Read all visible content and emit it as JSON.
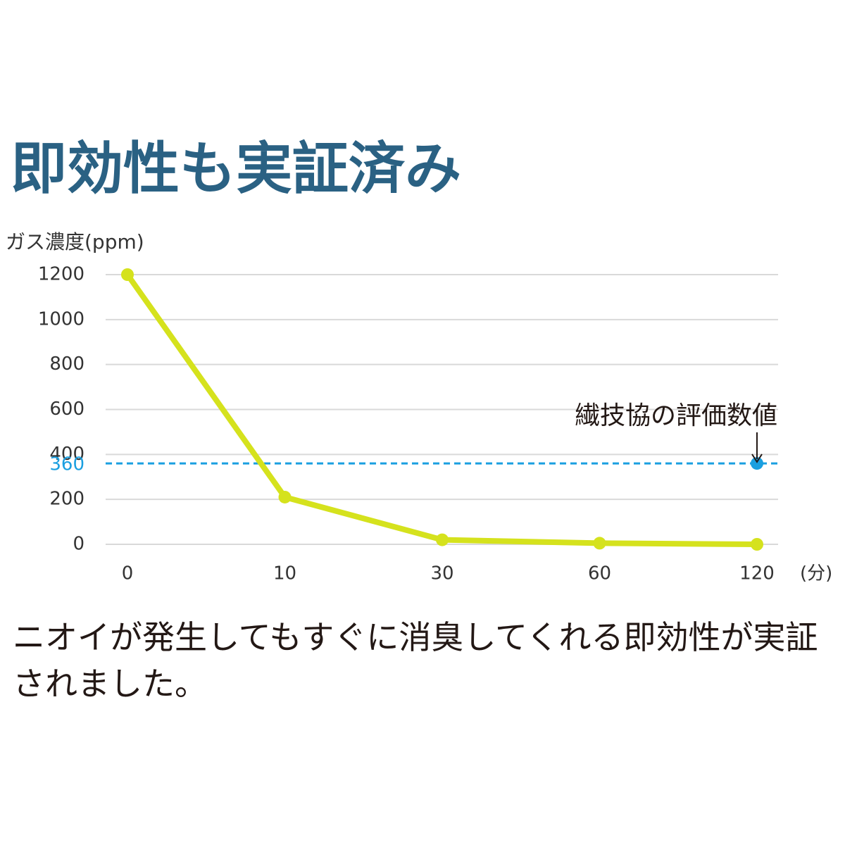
{
  "chart_data": {
    "type": "line",
    "title": "即効性も実証済み",
    "y_label": "ガス濃度(ppm)",
    "x_unit": "(分)",
    "categories": [
      "0",
      "10",
      "30",
      "60",
      "120"
    ],
    "values": [
      1200,
      210,
      20,
      5,
      0
    ],
    "color": "#d5e21d",
    "ylim": [
      0,
      1200
    ],
    "yticks": [
      0,
      200,
      400,
      600,
      800,
      1000,
      1200
    ],
    "grid": true,
    "reference_line": {
      "value": 360,
      "label": "繊技協の評価数値",
      "color": "#1a9fe0"
    },
    "caption": "ニオイが発生してもすぐに消臭してくれる即効性が実証されました。"
  }
}
